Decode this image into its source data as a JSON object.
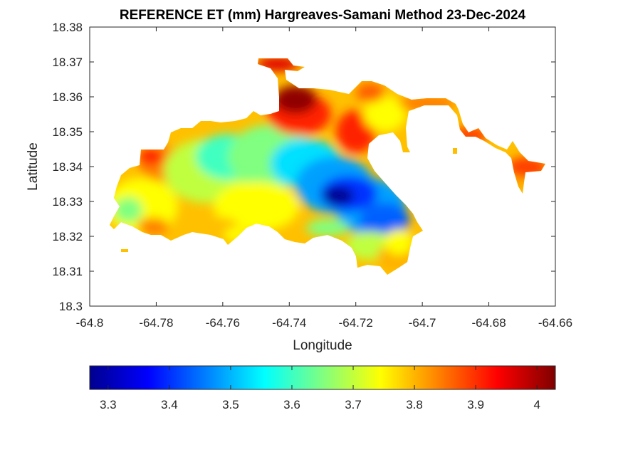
{
  "chart_data": {
    "type": "heatmap",
    "title": "REFERENCE ET (mm) Hargreaves-Samani Method  23-Dec-2024",
    "xlabel": "Longitude",
    "ylabel": "Latitude",
    "xlim": [
      -64.8,
      -64.66
    ],
    "ylim": [
      18.3,
      18.38
    ],
    "x_ticks": [
      "-64.8",
      "-64.78",
      "-64.76",
      "-64.74",
      "-64.72",
      "-64.7",
      "-64.68",
      "-64.66"
    ],
    "y_ticks": [
      "18.3",
      "18.31",
      "18.32",
      "18.33",
      "18.34",
      "18.35",
      "18.36",
      "18.37",
      "18.38"
    ],
    "colorbar": {
      "orientation": "horizontal",
      "range": [
        3.27,
        4.03
      ],
      "ticks": [
        "3.3",
        "3.4",
        "3.5",
        "3.6",
        "3.7",
        "3.8",
        "3.9",
        "4"
      ],
      "colormap": "jet",
      "colors": [
        "#00008f",
        "#0000ff",
        "#0080ff",
        "#00ffff",
        "#80ff80",
        "#ffff00",
        "#ff8000",
        "#ff0000",
        "#800000"
      ]
    },
    "regions": [
      {
        "name": "lowest ET core",
        "lon": -64.726,
        "lat": 18.3315,
        "value": 3.3
      },
      {
        "name": "highest ET core",
        "lon": -64.737,
        "lat": 18.3595,
        "value": 4.0
      }
    ]
  }
}
